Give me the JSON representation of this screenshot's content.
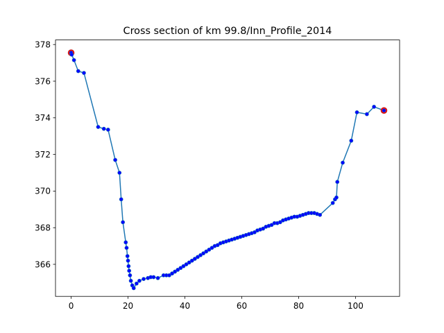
{
  "chart_data": {
    "type": "line",
    "title": "Cross section of km 99.8/Inn_Profile_2014",
    "xlabel": "",
    "ylabel": "",
    "xlim": [
      -5.5,
      115.5
    ],
    "ylim": [
      364.25,
      378.25
    ],
    "x_ticks": [
      0,
      20,
      40,
      60,
      80,
      100
    ],
    "y_ticks": [
      366,
      368,
      370,
      372,
      374,
      376,
      378
    ],
    "grid": false,
    "line_color": "#1f77b4",
    "marker_color": "#0000ff",
    "endpoint_color": "#ff0000",
    "series": [
      {
        "x": [
          0,
          0.2,
          1.0,
          2.5,
          4.5,
          9.5,
          11.5,
          13.0,
          15.5,
          17.0,
          17.6,
          18.2,
          19.2,
          19.5,
          19.8,
          20.0,
          20.2,
          20.4,
          20.7,
          21.0,
          21.5,
          22.0,
          23.0,
          24.0,
          25.5,
          27.0,
          28.0,
          29.0,
          30.5,
          32.5,
          33.5,
          34.5,
          35.5,
          36.5,
          37.5,
          38.5,
          39.5,
          40.5,
          41.5,
          42.5,
          43.5,
          44.5,
          45.5,
          46.5,
          47.5,
          48.5,
          49.5,
          50.5,
          51.5,
          52.5,
          53.5,
          54.5,
          55.5,
          56.5,
          57.5,
          58.5,
          59.5,
          60.5,
          61.5,
          62.5,
          63.5,
          64.5,
          65.5,
          66.5,
          67.5,
          68.5,
          69.5,
          70.5,
          71.5,
          72.5,
          73.5,
          74.5,
          75.5,
          76.5,
          77.5,
          78.5,
          79.5,
          80.5,
          81.5,
          82.5,
          83.5,
          84.5,
          85.5,
          86.5,
          87.5,
          92.0,
          92.8,
          93.3,
          93.6,
          95.5,
          98.5,
          100.5,
          104.0,
          106.5,
          110.0
        ],
        "y": [
          377.55,
          377.45,
          377.15,
          376.55,
          376.45,
          373.5,
          373.4,
          373.35,
          371.7,
          371.0,
          369.55,
          368.3,
          367.2,
          366.9,
          366.45,
          366.2,
          365.9,
          365.65,
          365.4,
          365.1,
          364.85,
          364.7,
          364.95,
          365.1,
          365.2,
          365.25,
          365.3,
          365.3,
          365.25,
          365.4,
          365.4,
          365.4,
          365.5,
          365.6,
          365.7,
          365.8,
          365.9,
          366.0,
          366.1,
          366.2,
          366.3,
          366.4,
          366.5,
          366.6,
          366.7,
          366.8,
          366.9,
          367.0,
          367.05,
          367.15,
          367.2,
          367.25,
          367.3,
          367.35,
          367.4,
          367.45,
          367.5,
          367.55,
          367.6,
          367.65,
          367.7,
          367.75,
          367.85,
          367.9,
          367.95,
          368.05,
          368.1,
          368.15,
          368.25,
          368.25,
          368.3,
          368.4,
          368.45,
          368.5,
          368.55,
          368.6,
          368.6,
          368.65,
          368.7,
          368.75,
          368.8,
          368.8,
          368.8,
          368.75,
          368.7,
          369.35,
          369.55,
          369.65,
          370.5,
          371.55,
          372.75,
          374.3,
          374.2,
          374.6,
          374.4
        ]
      }
    ]
  }
}
